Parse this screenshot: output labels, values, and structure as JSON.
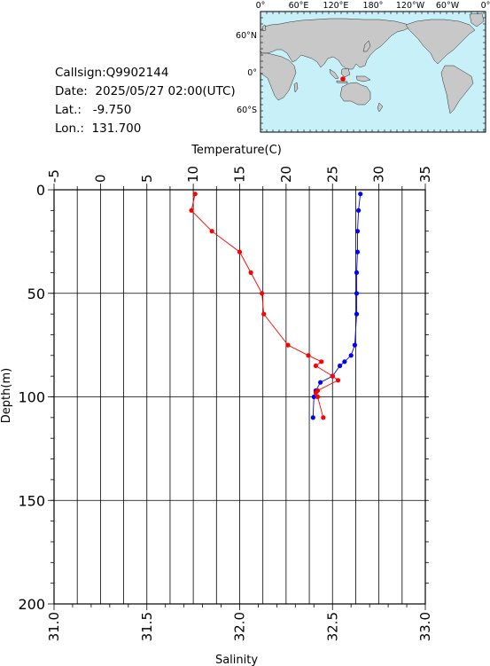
{
  "info": {
    "callsign": "Callsign:Q9902144",
    "date": "Date:  2025/05/27 02:00(UTC)",
    "lat": "Lat.:   -9.750",
    "lon": "Lon.:  131.700"
  },
  "map": {
    "lon_labels": [
      "0°",
      "60°E",
      "120°E",
      "180°",
      "120°W",
      "60°W",
      "0°"
    ],
    "lat_labels": [
      "60°N",
      "0°",
      "60°S"
    ],
    "colors": {
      "ocean": "#c8f0f8",
      "land": "#c8c8c8",
      "marker": "#ff0000"
    }
  },
  "chart_data": {
    "type": "line",
    "top_axis": {
      "label": "Temperature(C)",
      "range": [
        -5,
        35
      ],
      "ticks": [
        "-5",
        "0",
        "5",
        "10",
        "15",
        "20",
        "25",
        "30",
        "35"
      ]
    },
    "bottom_axis": {
      "label": "Salinity",
      "range": [
        31.0,
        33.0
      ],
      "ticks": [
        "31.0",
        "31.5",
        "32.0",
        "32.5",
        "33.0"
      ]
    },
    "y_axis": {
      "label": "Depth(m)",
      "range": [
        0,
        200
      ],
      "inverted": true,
      "ticks": [
        "0",
        "50",
        "100",
        "150",
        "200"
      ]
    },
    "grid": true,
    "series": [
      {
        "kind": "temperature",
        "color": "#0000ff",
        "points": [
          {
            "x": 28.0,
            "depth": 2
          },
          {
            "x": 27.8,
            "depth": 10
          },
          {
            "x": 27.7,
            "depth": 20
          },
          {
            "x": 27.7,
            "depth": 30
          },
          {
            "x": 27.6,
            "depth": 40
          },
          {
            "x": 27.6,
            "depth": 50
          },
          {
            "x": 27.6,
            "depth": 60
          },
          {
            "x": 27.4,
            "depth": 75
          },
          {
            "x": 27.0,
            "depth": 80
          },
          {
            "x": 26.3,
            "depth": 83
          },
          {
            "x": 25.8,
            "depth": 85
          },
          {
            "x": 25.0,
            "depth": 90
          },
          {
            "x": 23.7,
            "depth": 93
          },
          {
            "x": 23.2,
            "depth": 97
          },
          {
            "x": 23.0,
            "depth": 100
          },
          {
            "x": 22.9,
            "depth": 110
          }
        ]
      },
      {
        "kind": "salinity",
        "color": "#ff0000",
        "points": [
          {
            "x": 31.76,
            "depth": 2
          },
          {
            "x": 31.74,
            "depth": 10
          },
          {
            "x": 31.85,
            "depth": 20
          },
          {
            "x": 32.0,
            "depth": 30
          },
          {
            "x": 32.06,
            "depth": 40
          },
          {
            "x": 32.12,
            "depth": 50
          },
          {
            "x": 32.13,
            "depth": 60
          },
          {
            "x": 32.26,
            "depth": 75
          },
          {
            "x": 32.37,
            "depth": 80
          },
          {
            "x": 32.44,
            "depth": 83
          },
          {
            "x": 32.41,
            "depth": 85
          },
          {
            "x": 32.5,
            "depth": 90
          },
          {
            "x": 32.53,
            "depth": 92
          },
          {
            "x": 32.42,
            "depth": 97
          },
          {
            "x": 32.41,
            "depth": 98
          },
          {
            "x": 32.42,
            "depth": 100
          },
          {
            "x": 32.45,
            "depth": 110
          }
        ]
      }
    ]
  }
}
